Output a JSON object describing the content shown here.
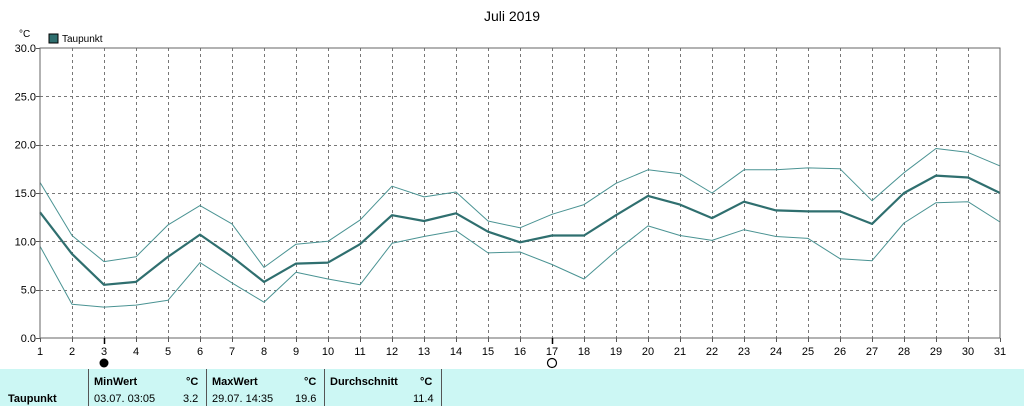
{
  "chart_data": {
    "type": "line",
    "title": "Juli 2019",
    "ylabel": "°C",
    "ylim": [
      0,
      30
    ],
    "yticks": [
      "0.0",
      "5.0",
      "10.0",
      "15.0",
      "20.0",
      "25.0",
      "30.0"
    ],
    "x": [
      1,
      2,
      3,
      4,
      5,
      6,
      7,
      8,
      9,
      10,
      11,
      12,
      13,
      14,
      15,
      16,
      17,
      18,
      19,
      20,
      21,
      22,
      23,
      24,
      25,
      26,
      27,
      28,
      29,
      30,
      31
    ],
    "legend": "top-left",
    "grid": true,
    "series": [
      {
        "name": "Taupunkt",
        "role": "mean",
        "color": "#2f6f6f",
        "values": [
          13.0,
          8.7,
          5.5,
          5.8,
          8.4,
          10.7,
          8.4,
          5.8,
          7.7,
          7.8,
          9.7,
          12.7,
          12.1,
          12.9,
          11.0,
          9.9,
          10.6,
          10.6,
          12.7,
          14.7,
          13.8,
          12.4,
          14.1,
          13.2,
          13.1,
          13.1,
          11.8,
          15.0,
          16.8,
          16.6,
          15.0
        ]
      },
      {
        "role": "max",
        "color": "#4a9393",
        "values": [
          16.1,
          10.6,
          7.9,
          8.4,
          11.7,
          13.7,
          11.8,
          7.3,
          9.7,
          10.0,
          12.2,
          15.7,
          14.6,
          15.1,
          12.1,
          11.4,
          12.8,
          13.8,
          16.0,
          17.4,
          17.0,
          15.0,
          17.4,
          17.4,
          17.6,
          17.5,
          14.2,
          17.1,
          19.6,
          19.2,
          17.8
        ]
      },
      {
        "role": "min",
        "color": "#4a9393",
        "values": [
          9.5,
          3.5,
          3.2,
          3.4,
          3.9,
          7.8,
          5.7,
          3.7,
          6.8,
          6.1,
          5.5,
          9.8,
          10.5,
          11.1,
          8.8,
          8.9,
          7.6,
          6.1,
          9.0,
          11.6,
          10.6,
          10.1,
          11.2,
          10.5,
          10.3,
          8.2,
          8.0,
          11.9,
          14.0,
          14.1,
          12.0
        ]
      }
    ]
  },
  "legend": {
    "label": "Taupunkt",
    "color": "#2f6f6f"
  },
  "moon": {
    "new_moon_day": 3,
    "full_moon_day": 17
  },
  "stats": {
    "row_label": "Taupunkt",
    "min": {
      "header": "MinWert",
      "unit": "°C",
      "datetime": "03.07.  03:05",
      "value": "3.2"
    },
    "max": {
      "header": "MaxWert",
      "unit": "°C",
      "datetime": "29.07.  14:35",
      "value": "19.6"
    },
    "avg": {
      "header": "Durchschnitt",
      "unit": "°C",
      "value": "11.4"
    }
  }
}
